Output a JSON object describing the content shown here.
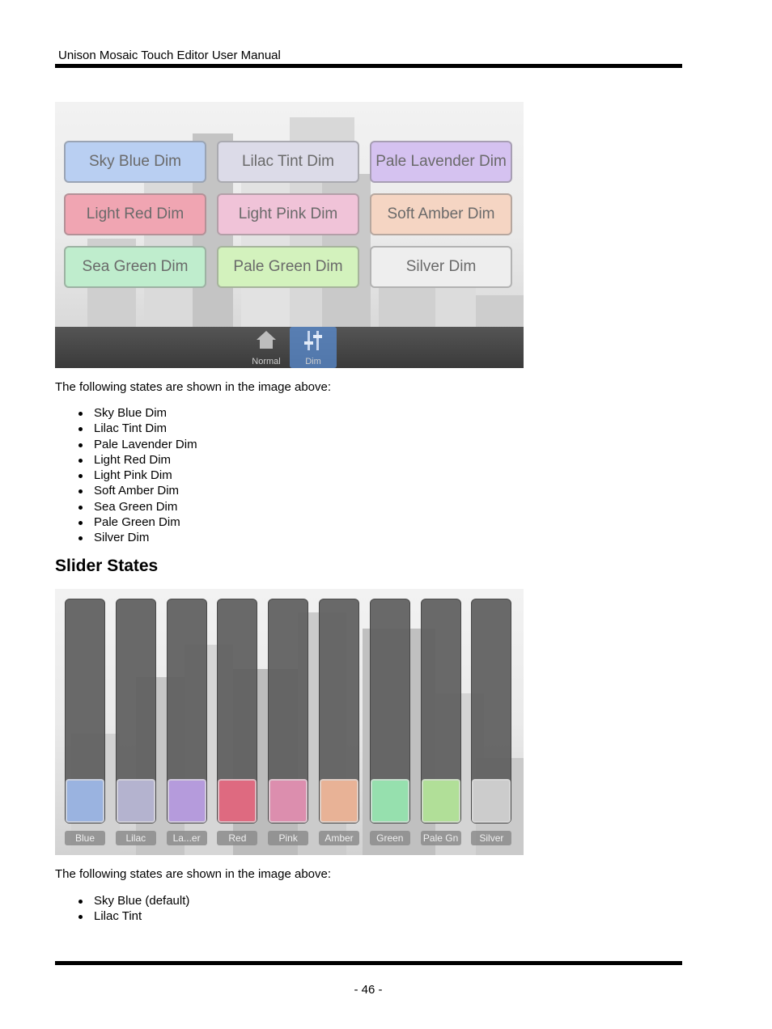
{
  "header": {
    "title": "Unison Mosaic Touch Editor User Manual"
  },
  "dim_screenshot": {
    "buttons": [
      {
        "label": "Sky Blue Dim",
        "color": "#b9cff2"
      },
      {
        "label": "Lilac Tint Dim",
        "color": "#dcdbe8"
      },
      {
        "label": "Pale Lavender Dim",
        "color": "#d5c2f0"
      },
      {
        "label": "Light Red Dim",
        "color": "#f0a5b2"
      },
      {
        "label": "Light Pink Dim",
        "color": "#f0c3d8"
      },
      {
        "label": "Soft Amber Dim",
        "color": "#f5d5c3"
      },
      {
        "label": "Sea Green Dim",
        "color": "#bfedcd"
      },
      {
        "label": "Pale Green Dim",
        "color": "#d3f2bd"
      },
      {
        "label": "Silver Dim",
        "color": "#eeeeee"
      }
    ],
    "nav": {
      "normal_label": "Normal",
      "dim_label": "Dim"
    }
  },
  "dim_intro": "The following states are shown in the image above:",
  "dim_states": [
    "Sky Blue Dim",
    "Lilac Tint Dim",
    "Pale Lavender Dim",
    "Light Red Dim",
    "Light Pink Dim",
    "Soft Amber Dim",
    "Sea Green Dim",
    "Pale Green Dim",
    "Silver Dim"
  ],
  "slider_section": {
    "heading": "Slider States"
  },
  "slider_screenshot": {
    "sliders": [
      {
        "label": "Blue",
        "color": "#9ab3e0"
      },
      {
        "label": "Lilac",
        "color": "#b4b3cf"
      },
      {
        "label": "La...er",
        "color": "#b59bdc"
      },
      {
        "label": "Red",
        "color": "#de6a80"
      },
      {
        "label": "Pink",
        "color": "#dc8eae"
      },
      {
        "label": "Amber",
        "color": "#e8b296"
      },
      {
        "label": "Green",
        "color": "#96e0ae"
      },
      {
        "label": "Pale Gn",
        "color": "#b1df98"
      },
      {
        "label": "Silver",
        "color": "#cccccc"
      }
    ]
  },
  "slider_intro": "The following states are shown in the image above:",
  "slider_states": [
    "Sky Blue (default)",
    "Lilac Tint"
  ],
  "footer": {
    "page_number": "- 46 -"
  }
}
